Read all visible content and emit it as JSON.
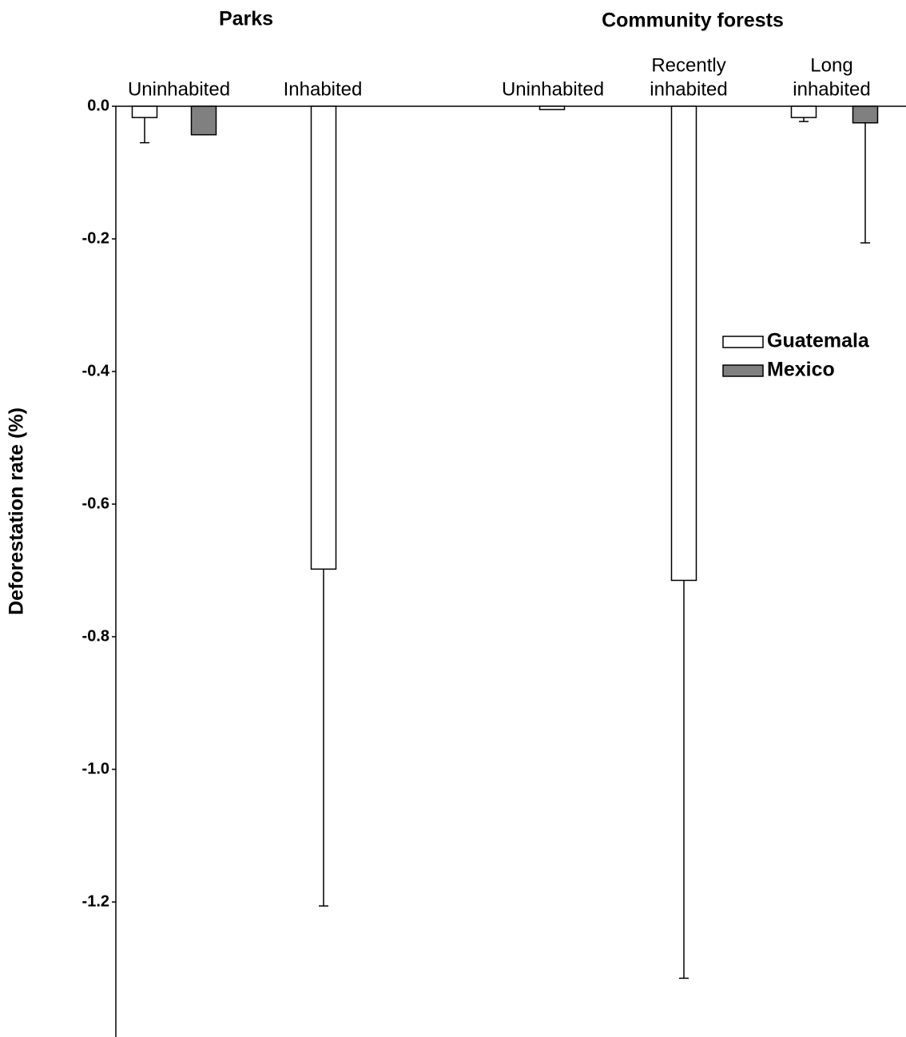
{
  "chart_data": {
    "type": "bar",
    "group_labels": [
      "Parks",
      "Community forests"
    ],
    "y_label": "Deforestation rate (%)",
    "categories": [
      [
        "Uninhabited"
      ],
      [
        "Inhabited"
      ],
      [
        "Uninhabited"
      ],
      [
        "Recently",
        "inhabited"
      ],
      [
        "Long",
        "inhabited"
      ]
    ],
    "series": [
      {
        "name": "Guatemala",
        "color": "#ffffff",
        "values": [
          -0.017,
          -0.698,
          -0.005,
          -0.715,
          -0.017
        ],
        "errors": [
          0.038,
          0.508,
          null,
          0.6,
          0.006
        ]
      },
      {
        "name": "Mexico",
        "color": "#808080",
        "values": [
          -0.043,
          null,
          null,
          null,
          -0.025
        ],
        "errors": [
          null,
          null,
          null,
          null,
          0.181
        ]
      }
    ],
    "ylim": [
      -1.4,
      0
    ],
    "yticks": [
      {
        "value": 0,
        "label": "0.0"
      },
      -0.2,
      -0.4,
      -0.6,
      -0.8,
      {
        "value": -1,
        "label": "-1.0"
      },
      -1.2
    ],
    "legend": "right"
  }
}
